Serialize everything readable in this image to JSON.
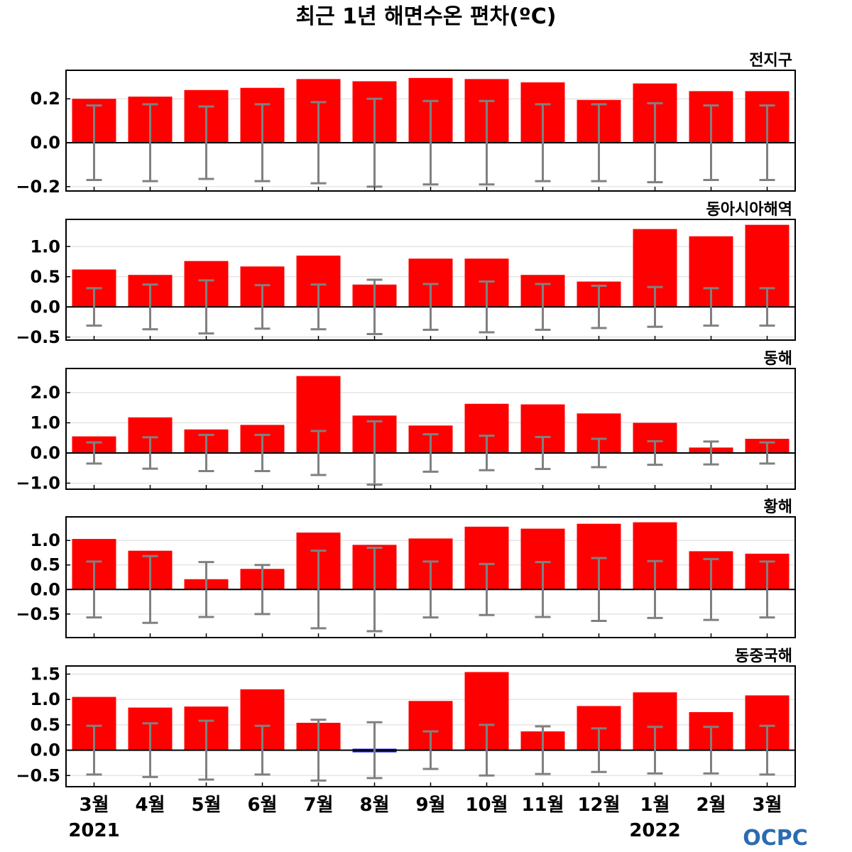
{
  "chart_data": {
    "type": "bar",
    "title": "최근 1년 해면수온 편차(ºC)",
    "categories": [
      "3월",
      "4월",
      "5월",
      "6월",
      "7월",
      "8월",
      "9월",
      "10월",
      "11월",
      "12월",
      "1월",
      "2월",
      "3월"
    ],
    "years": [
      {
        "label": "2021",
        "category_index": 0
      },
      {
        "label": "2022",
        "category_index": 10
      }
    ],
    "grid": true,
    "colors": {
      "positive": "#ff0000",
      "negative": "#0000ff",
      "error_bar": "#808080",
      "zero_line": "#000000",
      "grid": "#d9d9d9"
    },
    "panels": [
      {
        "name": "전지구",
        "ylim": [
          -0.22,
          0.33
        ],
        "ticks": [
          -0.2,
          0.0,
          0.2
        ],
        "tick_labels": [
          "−0.2",
          "0.0",
          "0.2"
        ],
        "values": [
          0.2,
          0.21,
          0.24,
          0.25,
          0.29,
          0.28,
          0.295,
          0.29,
          0.275,
          0.195,
          0.27,
          0.235,
          0.235
        ],
        "error": [
          0.17,
          0.175,
          0.165,
          0.175,
          0.185,
          0.2,
          0.19,
          0.19,
          0.175,
          0.175,
          0.18,
          0.17,
          0.17
        ]
      },
      {
        "name": "동아시아해역",
        "ylim": [
          -0.55,
          1.45
        ],
        "ticks": [
          -0.5,
          0.0,
          0.5,
          1.0
        ],
        "tick_labels": [
          "−0.5",
          "0.0",
          "0.5",
          "1.0"
        ],
        "values": [
          0.62,
          0.53,
          0.76,
          0.67,
          0.85,
          0.37,
          0.8,
          0.8,
          0.53,
          0.42,
          1.29,
          1.17,
          1.36
        ],
        "error": [
          0.31,
          0.37,
          0.44,
          0.36,
          0.37,
          0.45,
          0.38,
          0.42,
          0.38,
          0.35,
          0.33,
          0.31,
          0.31
        ]
      },
      {
        "name": "동해",
        "ylim": [
          -1.2,
          2.8
        ],
        "ticks": [
          -1.0,
          0.0,
          1.0,
          2.0
        ],
        "tick_labels": [
          "−1.0",
          "0.0",
          "1.0",
          "2.0"
        ],
        "values": [
          0.55,
          1.18,
          0.78,
          0.93,
          2.55,
          1.24,
          0.91,
          1.63,
          1.61,
          1.31,
          1.0,
          0.18,
          0.47
        ],
        "error": [
          0.35,
          0.52,
          0.6,
          0.6,
          0.73,
          1.05,
          0.62,
          0.57,
          0.53,
          0.47,
          0.39,
          0.38,
          0.35
        ]
      },
      {
        "name": "황해",
        "ylim": [
          -0.98,
          1.48
        ],
        "ticks": [
          -0.5,
          0.0,
          0.5,
          1.0
        ],
        "tick_labels": [
          "−0.5",
          "0.0",
          "0.5",
          "1.0"
        ],
        "values": [
          1.03,
          0.79,
          0.21,
          0.42,
          1.16,
          0.91,
          1.04,
          1.28,
          1.24,
          1.34,
          1.37,
          0.78,
          0.73
        ],
        "error": [
          0.57,
          0.68,
          0.56,
          0.5,
          0.79,
          0.85,
          0.57,
          0.52,
          0.56,
          0.64,
          0.58,
          0.62,
          0.57
        ]
      },
      {
        "name": "동중국해",
        "ylim": [
          -0.72,
          1.66
        ],
        "ticks": [
          -0.5,
          0.0,
          0.5,
          1.0,
          1.5
        ],
        "tick_labels": [
          "−0.5",
          "0.0",
          "0.5",
          "1.0",
          "1.5"
        ],
        "values": [
          1.05,
          0.84,
          0.86,
          1.2,
          0.54,
          -0.05,
          0.97,
          1.54,
          0.37,
          0.87,
          1.14,
          0.75,
          1.08
        ],
        "error": [
          0.48,
          0.53,
          0.58,
          0.48,
          0.6,
          0.55,
          0.37,
          0.5,
          0.47,
          0.43,
          0.46,
          0.46,
          0.48
        ]
      }
    ]
  },
  "logo": {
    "text": "OCPC",
    "color": "#2b6cb0"
  }
}
